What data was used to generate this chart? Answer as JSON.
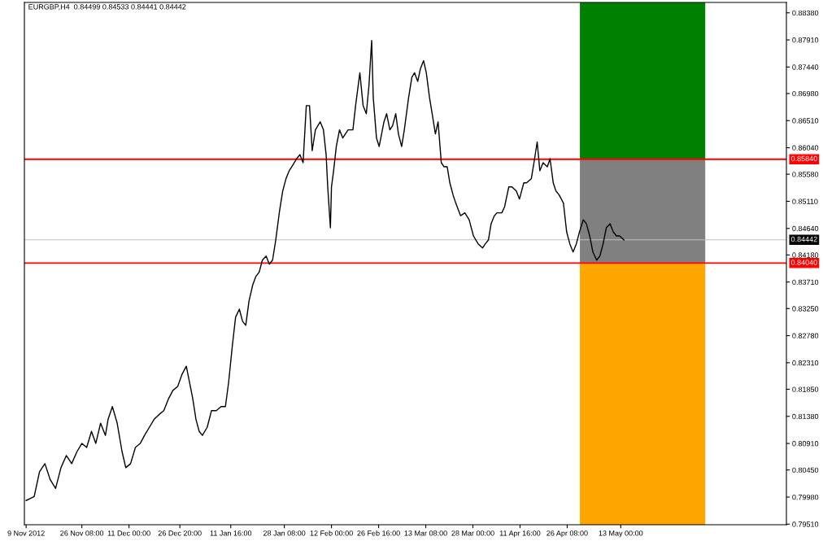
{
  "chart_data": {
    "type": "line",
    "title": "EURGBP,H4  0.84499 0.84533 0.84441 0.84442",
    "xlim": [
      "2012-11-08T11:00",
      "2013-07-03T13:00"
    ],
    "ylim": [
      0.795,
      0.8856
    ],
    "xticks": [
      {
        "value": "2012-11-09T00:00",
        "label": "9 Nov 2012"
      },
      {
        "value": "2012-11-26T08:00",
        "label": "26 Nov 08:00"
      },
      {
        "value": "2012-12-11T00:00",
        "label": "11 Dec 00:00"
      },
      {
        "value": "2012-12-26T20:00",
        "label": "26 Dec 20:00"
      },
      {
        "value": "2013-01-11T16:00",
        "label": "11 Jan 16:00"
      },
      {
        "value": "2013-01-28T08:00",
        "label": "28 Jan 08:00"
      },
      {
        "value": "2013-02-12T00:00",
        "label": "12 Feb 00:00"
      },
      {
        "value": "2013-02-26T16:00",
        "label": "26 Feb 16:00"
      },
      {
        "value": "2013-03-13T08:00",
        "label": "13 Mar 08:00"
      },
      {
        "value": "2013-03-28T00:00",
        "label": "28 Mar 00:00"
      },
      {
        "value": "2013-04-11T16:00",
        "label": "11 Apr 16:00"
      },
      {
        "value": "2013-04-26T08:00",
        "label": "26 Apr 08:00"
      },
      {
        "value": "2013-05-13T00:00",
        "label": "13 May 00:00"
      }
    ],
    "yticks": [
      {
        "value": 0.8838,
        "label": "0.88380"
      },
      {
        "value": 0.8791,
        "label": "0.87910"
      },
      {
        "value": 0.8744,
        "label": "0.87440"
      },
      {
        "value": 0.8698,
        "label": "0.86980"
      },
      {
        "value": 0.8651,
        "label": "0.86510"
      },
      {
        "value": 0.8604,
        "label": "0.86040"
      },
      {
        "value": 0.8558,
        "label": "0.85580"
      },
      {
        "value": 0.8511,
        "label": "0.85110"
      },
      {
        "value": 0.8464,
        "label": "0.84640"
      },
      {
        "value": 0.8418,
        "label": "0.84180"
      },
      {
        "value": 0.8371,
        "label": "0.83710"
      },
      {
        "value": 0.8325,
        "label": "0.83250"
      },
      {
        "value": 0.8278,
        "label": "0.82780"
      },
      {
        "value": 0.8231,
        "label": "0.82310"
      },
      {
        "value": 0.8185,
        "label": "0.81850"
      },
      {
        "value": 0.8138,
        "label": "0.81380"
      },
      {
        "value": 0.8091,
        "label": "0.80910"
      },
      {
        "value": 0.8045,
        "label": "0.80450"
      },
      {
        "value": 0.7998,
        "label": "0.79980"
      },
      {
        "value": 0.7951,
        "label": "0.79510"
      }
    ],
    "series": [
      {
        "type": "bar",
        "x": [
          "2013-05-19T19:00"
        ],
        "base": [
          0.8584
        ],
        "values": [
          0.0272
        ],
        "color": "#008000"
      },
      {
        "type": "bar",
        "x": [
          "2013-05-19T19:00"
        ],
        "base": [
          0.8404
        ],
        "values": [
          0.018
        ],
        "color": "#808080"
      },
      {
        "type": "bar",
        "x": [
          "2013-05-19T19:00"
        ],
        "base": [
          0.795
        ],
        "values": [
          0.0454
        ],
        "color": "#ffa500"
      },
      {
        "color": "#000000",
        "x": [
          "2012-11-09T00:00",
          "2012-11-11T12:00",
          "2012-11-13T04:00",
          "2012-11-14T20:00",
          "2012-11-16T12:00",
          "2012-11-18T04:00",
          "2012-11-19T20:00",
          "2012-11-21T12:00",
          "2012-11-23T04:00",
          "2012-11-24T20:00",
          "2012-11-26T08:00",
          "2012-11-27T20:00",
          "2012-11-29T08:00",
          "2012-11-30T16:00",
          "2012-12-02T04:00",
          "2012-12-03T16:00",
          "2012-12-04T12:00",
          "2012-12-05T20:00",
          "2012-12-07T08:00",
          "2012-12-08T20:00",
          "2012-12-10T00:00",
          "2012-12-11T12:00",
          "2012-12-13T00:00",
          "2012-12-14T12:00",
          "2012-12-15T20:00",
          "2012-12-17T08:00",
          "2012-12-18T20:00",
          "2012-12-20T08:00",
          "2012-12-21T20:00",
          "2012-12-23T08:00",
          "2012-12-24T16:00",
          "2012-12-26T04:00",
          "2012-12-27T12:00",
          "2012-12-28T20:00",
          "2012-12-29T20:00",
          "2012-12-30T20:00",
          "2012-12-31T20:00",
          "2013-01-01T20:00",
          "2013-01-02T20:00",
          "2013-01-04T08:00",
          "2013-01-05T16:00",
          "2013-01-07T04:00",
          "2013-01-08T16:00",
          "2013-01-10T00:00",
          "2013-01-11T00:00",
          "2013-01-12T04:00",
          "2013-01-13T04:00",
          "2013-01-14T08:00",
          "2013-01-15T08:00",
          "2013-01-16T08:00",
          "2013-01-17T08:00",
          "2013-01-18T12:00",
          "2013-01-19T12:00",
          "2013-01-20T12:00",
          "2013-01-21T12:00",
          "2013-01-22T16:00",
          "2013-01-23T16:00",
          "2013-01-24T16:00",
          "2013-01-25T16:00",
          "2013-01-26T20:00",
          "2013-01-27T20:00",
          "2013-01-28T20:00",
          "2013-01-29T20:00",
          "2013-01-30T16:00",
          "2013-02-01T04:00",
          "2013-02-02T04:00",
          "2013-02-03T04:00",
          "2013-02-04T04:00",
          "2013-02-05T04:00",
          "2013-02-06T00:00",
          "2013-02-07T00:00",
          "2013-02-08T12:00",
          "2013-02-09T12:00",
          "2013-02-10T08:00",
          "2013-02-10T20:00",
          "2013-02-11T16:00",
          "2013-02-12T00:00",
          "2013-02-12T16:00",
          "2013-02-13T12:00",
          "2013-02-14T12:00",
          "2013-02-15T12:00",
          "2013-02-16T08:00",
          "2013-02-17T04:00",
          "2013-02-18T16:00",
          "2013-02-19T12:00",
          "2013-02-20T20:00",
          "2013-02-21T20:00",
          "2013-02-22T20:00",
          "2013-02-23T16:00",
          "2013-02-24T12:00",
          "2013-02-25T00:00",
          "2013-02-26T00:00",
          "2013-02-26T20:00",
          "2013-02-28T08:00",
          "2013-03-01T04:00",
          "2013-03-02T04:00",
          "2013-03-03T00:00",
          "2013-03-04T00:00",
          "2013-03-04T20:00",
          "2013-03-05T20:00",
          "2013-03-06T16:00",
          "2013-03-08T00:00",
          "2013-03-09T00:00",
          "2013-03-09T20:00",
          "2013-03-10T20:00",
          "2013-03-11T16:00",
          "2013-03-12T16:00",
          "2013-03-13T12:00",
          "2013-03-14T12:00",
          "2013-03-15T08:00",
          "2013-03-16T08:00",
          "2013-03-17T04:00",
          "2013-03-18T04:00",
          "2013-03-19T00:00",
          "2013-03-20T00:00",
          "2013-03-20T20:00",
          "2013-03-21T20:00",
          "2013-03-22T16:00",
          "2013-03-24T04:00",
          "2013-03-25T12:00",
          "2013-03-26T20:00",
          "2013-03-28T04:00",
          "2013-03-29T16:00",
          "2013-03-31T00:00",
          "2013-03-31T20:00",
          "2013-04-01T20:00",
          "2013-04-02T16:00",
          "2013-04-03T16:00",
          "2013-04-04T12:00",
          "2013-04-06T00:00",
          "2013-04-06T20:00",
          "2013-04-08T04:00",
          "2013-04-09T04:00",
          "2013-04-10T12:00",
          "2013-04-11T12:00",
          "2013-04-12T20:00",
          "2013-04-13T16:00",
          "2013-04-15T04:00",
          "2013-04-16T00:00",
          "2013-04-17T00:00",
          "2013-04-17T20:00",
          "2013-04-18T20:00",
          "2013-04-20T04:00",
          "2013-04-21T00:00",
          "2013-04-22T00:00",
          "2013-04-22T20:00",
          "2013-04-23T20:00",
          "2013-04-25T04:00",
          "2013-04-26T04:00",
          "2013-04-27T04:00",
          "2013-04-28T04:00",
          "2013-04-29T04:00",
          "2013-04-30T04:00",
          "2013-05-01T08:00",
          "2013-05-02T08:00",
          "2013-05-03T08:00",
          "2013-05-04T08:00",
          "2013-05-05T12:00",
          "2013-05-06T12:00",
          "2013-05-07T12:00",
          "2013-05-08T12:00",
          "2013-05-09T16:00",
          "2013-05-10T16:00",
          "2013-05-11T16:00",
          "2013-05-12T16:00",
          "2013-05-14T00:00"
        ],
        "values": [
          0.7992,
          0.7999,
          0.8042,
          0.8056,
          0.8028,
          0.8013,
          0.8049,
          0.807,
          0.8056,
          0.8077,
          0.8091,
          0.8084,
          0.8112,
          0.8091,
          0.8126,
          0.8105,
          0.8133,
          0.8155,
          0.8126,
          0.8077,
          0.8049,
          0.8056,
          0.8084,
          0.8091,
          0.8105,
          0.8119,
          0.8133,
          0.8141,
          0.8148,
          0.8169,
          0.8183,
          0.819,
          0.8211,
          0.8225,
          0.8197,
          0.8169,
          0.8133,
          0.8112,
          0.8105,
          0.8119,
          0.8148,
          0.8148,
          0.8155,
          0.8155,
          0.8197,
          0.8261,
          0.831,
          0.8324,
          0.8303,
          0.8296,
          0.8338,
          0.8366,
          0.8381,
          0.8388,
          0.8409,
          0.8416,
          0.8402,
          0.8409,
          0.8444,
          0.8494,
          0.8529,
          0.855,
          0.8564,
          0.8571,
          0.8585,
          0.8592,
          0.8578,
          0.8677,
          0.8677,
          0.8599,
          0.8635,
          0.8649,
          0.8635,
          0.8592,
          0.8536,
          0.8465,
          0.8536,
          0.8564,
          0.8606,
          0.8635,
          0.8621,
          0.8628,
          0.8635,
          0.8635,
          0.8677,
          0.8734,
          0.8677,
          0.8663,
          0.8712,
          0.879,
          0.8691,
          0.8621,
          0.8606,
          0.8649,
          0.8663,
          0.8635,
          0.8642,
          0.8663,
          0.8628,
          0.8606,
          0.8635,
          0.8691,
          0.8726,
          0.8734,
          0.8719,
          0.8741,
          0.8755,
          0.8734,
          0.8691,
          0.8663,
          0.8628,
          0.8649,
          0.8578,
          0.8571,
          0.8571,
          0.8543,
          0.8522,
          0.8508,
          0.8486,
          0.8491,
          0.8479,
          0.8451,
          0.8437,
          0.843,
          0.8437,
          0.8444,
          0.8472,
          0.8486,
          0.8491,
          0.8491,
          0.8501,
          0.8536,
          0.8536,
          0.8529,
          0.8515,
          0.8543,
          0.8543,
          0.855,
          0.8578,
          0.8614,
          0.8564,
          0.8578,
          0.8571,
          0.8585,
          0.8543,
          0.8529,
          0.8522,
          0.8508,
          0.8458,
          0.8437,
          0.8423,
          0.8437,
          0.8458,
          0.8479,
          0.8472,
          0.8451,
          0.8423,
          0.8409,
          0.8416,
          0.8437,
          0.8465,
          0.8472,
          0.8458,
          0.8451,
          0.8451,
          0.8444
        ]
      }
    ],
    "ref_lines": [
      {
        "axis": "y",
        "value": 0.8584,
        "label": "0.85840",
        "color": "#ff0000"
      },
      {
        "axis": "y",
        "value": 0.8404,
        "label": "0.84040",
        "color": "#ff0000"
      },
      {
        "axis": "y",
        "value": 0.84442,
        "label": "0.84442",
        "color": "#c0c0c0"
      }
    ]
  }
}
